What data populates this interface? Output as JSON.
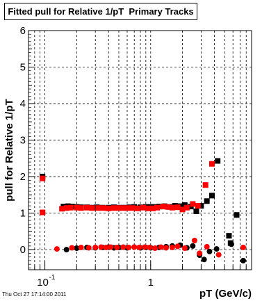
{
  "chart_data": {
    "type": "scatter",
    "title": "Fitted pull for Relative 1/pT  Primary Tracks",
    "xlabel": "pT (GeV/c)",
    "ylabel": "pull for Relative 1/pT",
    "xscale": "log",
    "xlim": [
      0.07,
      9
    ],
    "ylim": [
      -0.55,
      6
    ],
    "grid": true,
    "y_ticks": [
      "0",
      "1",
      "2",
      "3",
      "4",
      "5",
      "6"
    ],
    "x_ticks": [
      "10",
      "1"
    ],
    "x_tick_exponent": "-1",
    "series": [
      {
        "marker": "square",
        "color": "#000000",
        "points": [
          [
            0.095,
            2.0
          ],
          [
            0.15,
            1.18
          ],
          [
            0.165,
            1.19
          ],
          [
            0.18,
            1.18
          ],
          [
            0.2,
            1.17
          ],
          [
            0.22,
            1.16
          ],
          [
            0.25,
            1.16
          ],
          [
            0.28,
            1.15
          ],
          [
            0.31,
            1.16
          ],
          [
            0.35,
            1.15
          ],
          [
            0.4,
            1.15
          ],
          [
            0.45,
            1.16
          ],
          [
            0.5,
            1.15
          ],
          [
            0.56,
            1.15
          ],
          [
            0.63,
            1.16
          ],
          [
            0.7,
            1.17
          ],
          [
            0.8,
            1.16
          ],
          [
            0.9,
            1.17
          ],
          [
            1.0,
            1.17
          ],
          [
            1.1,
            1.17
          ],
          [
            1.2,
            1.18
          ],
          [
            1.35,
            1.19
          ],
          [
            1.5,
            1.17
          ],
          [
            1.7,
            1.2
          ],
          [
            1.9,
            1.19
          ],
          [
            2.1,
            1.22
          ],
          [
            2.4,
            1.18
          ],
          [
            2.7,
            1.05
          ],
          [
            3.0,
            1.2
          ],
          [
            3.4,
            1.33
          ],
          [
            3.8,
            1.48
          ],
          [
            4.3,
            2.43
          ],
          [
            5.5,
            0.38
          ],
          [
            5.7,
            0.18
          ],
          [
            6.5,
            0.95
          ]
        ]
      },
      {
        "marker": "square",
        "color": "#ff0000",
        "points": [
          [
            0.095,
            1.95
          ],
          [
            0.095,
            1.02
          ],
          [
            0.145,
            1.12
          ],
          [
            0.16,
            1.14
          ],
          [
            0.175,
            1.15
          ],
          [
            0.2,
            1.15
          ],
          [
            0.22,
            1.14
          ],
          [
            0.25,
            1.15
          ],
          [
            0.28,
            1.14
          ],
          [
            0.32,
            1.14
          ],
          [
            0.36,
            1.14
          ],
          [
            0.4,
            1.13
          ],
          [
            0.45,
            1.14
          ],
          [
            0.5,
            1.14
          ],
          [
            0.55,
            1.14
          ],
          [
            0.6,
            1.14
          ],
          [
            0.67,
            1.14
          ],
          [
            0.75,
            1.13
          ],
          [
            0.85,
            1.15
          ],
          [
            0.95,
            1.13
          ],
          [
            1.05,
            1.13
          ],
          [
            1.15,
            1.15
          ],
          [
            1.3,
            1.18
          ],
          [
            1.45,
            1.17
          ],
          [
            1.6,
            1.15
          ],
          [
            1.8,
            1.16
          ],
          [
            2.0,
            1.1
          ],
          [
            2.2,
            1.15
          ],
          [
            2.5,
            1.25
          ],
          [
            2.8,
            1.2
          ],
          [
            3.3,
            1.77
          ],
          [
            3.8,
            2.35
          ]
        ]
      },
      {
        "marker": "circle",
        "color": "#000000",
        "points": [
          [
            0.16,
            0.0
          ],
          [
            0.2,
            0.04
          ],
          [
            0.25,
            0.06
          ],
          [
            0.3,
            0.05
          ],
          [
            0.35,
            0.06
          ],
          [
            0.4,
            0.07
          ],
          [
            0.45,
            0.05
          ],
          [
            0.5,
            0.06
          ],
          [
            0.6,
            0.05
          ],
          [
            0.7,
            0.07
          ],
          [
            0.8,
            0.05
          ],
          [
            0.9,
            0.06
          ],
          [
            1.0,
            0.05
          ],
          [
            1.2,
            0.06
          ],
          [
            1.4,
            0.08
          ],
          [
            1.6,
            0.1
          ],
          [
            1.9,
            0.12
          ],
          [
            2.2,
            0.05
          ],
          [
            2.5,
            0.1
          ],
          [
            2.9,
            -0.15
          ],
          [
            3.2,
            -0.27
          ],
          [
            3.6,
            -0.05
          ],
          [
            4.2,
            0.02
          ],
          [
            5.8,
            0.15
          ],
          [
            7.5,
            -0.3
          ]
        ]
      },
      {
        "marker": "circle",
        "color": "#ff0000",
        "points": [
          [
            0.095,
            1.02
          ],
          [
            0.13,
            0.02
          ],
          [
            0.18,
            0.05
          ],
          [
            0.22,
            0.06
          ],
          [
            0.26,
            0.05
          ],
          [
            0.3,
            0.06
          ],
          [
            0.34,
            0.07
          ],
          [
            0.38,
            0.06
          ],
          [
            0.42,
            0.07
          ],
          [
            0.48,
            0.06
          ],
          [
            0.55,
            0.07
          ],
          [
            0.62,
            0.06
          ],
          [
            0.7,
            0.07
          ],
          [
            0.78,
            0.06
          ],
          [
            0.88,
            0.07
          ],
          [
            0.98,
            0.06
          ],
          [
            1.1,
            0.04
          ],
          [
            1.25,
            0.07
          ],
          [
            1.4,
            0.05
          ],
          [
            1.6,
            0.06
          ],
          [
            1.8,
            0.09
          ],
          [
            2.1,
            0.04
          ],
          [
            2.6,
            0.25
          ],
          [
            2.9,
            -0.1
          ],
          [
            3.4,
            0.08
          ],
          [
            4.4,
            -0.14
          ],
          [
            7.5,
            0.06
          ]
        ]
      }
    ]
  },
  "footer": {
    "timestamp": "Thu Oct 27 17:14:00 2011"
  }
}
